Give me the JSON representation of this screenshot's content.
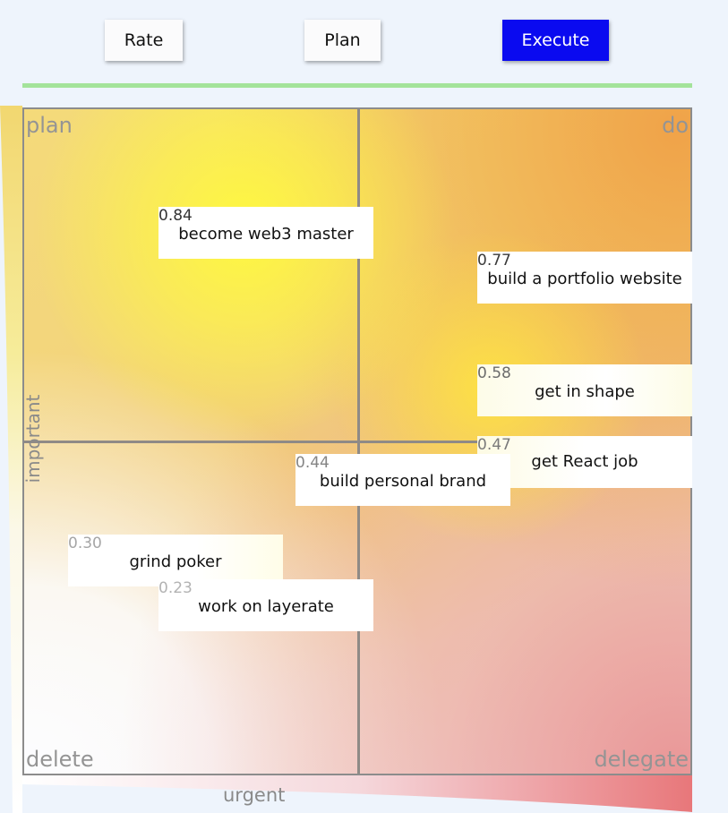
{
  "toolbar": {
    "rate_label": "Rate",
    "plan_label": "Plan",
    "execute_label": "Execute",
    "active_tab": "Execute",
    "active_color": "#0a0af0"
  },
  "divider_color": "#a3e39a",
  "quadrants": {
    "top_left": "plan",
    "top_right": "do",
    "bottom_left": "delete",
    "bottom_right": "delegate"
  },
  "axes": {
    "x_label": "urgent",
    "y_label": "important"
  },
  "tasks": [
    {
      "score": "0.84",
      "title": "become web3 master"
    },
    {
      "score": "0.77",
      "title": "build a portfolio website"
    },
    {
      "score": "0.58",
      "title": "get in shape"
    },
    {
      "score": "0.47",
      "title": "get React job"
    },
    {
      "score": "0.44",
      "title": "build personal brand"
    },
    {
      "score": "0.30",
      "title": "grind poker"
    },
    {
      "score": "0.23",
      "title": "work on layerate"
    }
  ]
}
